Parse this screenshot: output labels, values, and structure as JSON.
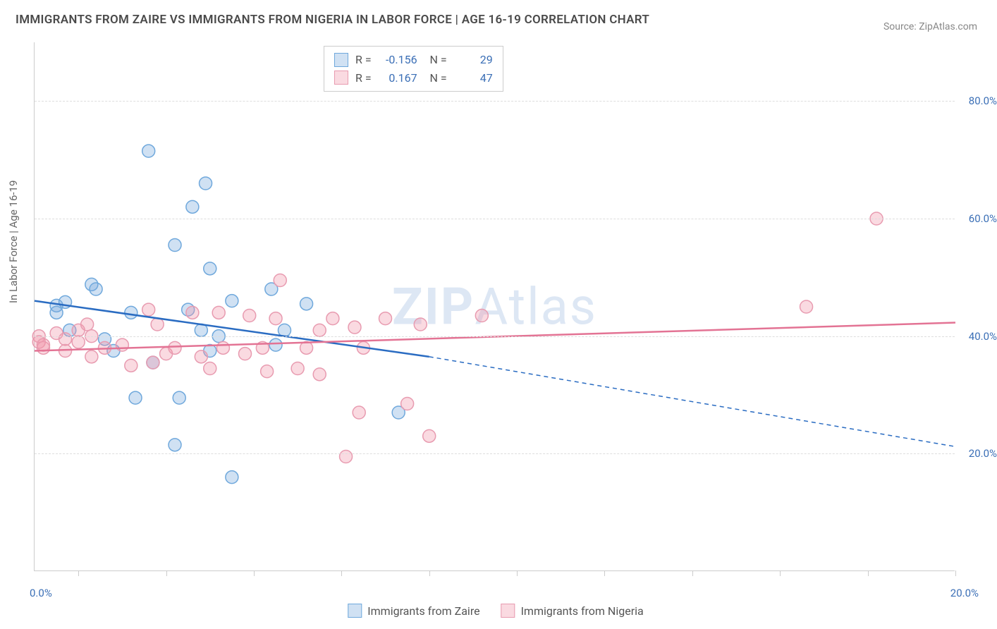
{
  "title": "IMMIGRANTS FROM ZAIRE VS IMMIGRANTS FROM NIGERIA IN LABOR FORCE | AGE 16-19 CORRELATION CHART",
  "source": "Source: ZipAtlas.com",
  "watermark_bold": "ZIP",
  "watermark_rest": "Atlas",
  "ylabel": "In Labor Force | Age 16-19",
  "chart": {
    "type": "scatter",
    "background_color": "#ffffff",
    "grid_color": "#dddddd",
    "axis_color": "#cccccc",
    "text_color": "#666666",
    "value_color": "#3b6fb6",
    "xlim": [
      -1,
      20
    ],
    "ylim": [
      0,
      90
    ],
    "xtick_positions": [
      0,
      2,
      4,
      6,
      8,
      10,
      12,
      14,
      16,
      18,
      20
    ],
    "xtick_labels": {
      "0": "0.0%",
      "20": "20.0%"
    },
    "ytick_positions": [
      20,
      40,
      60,
      80
    ],
    "ytick_labels": [
      "20.0%",
      "40.0%",
      "60.0%",
      "80.0%"
    ],
    "marker_radius": 9,
    "marker_stroke_width": 1.5,
    "trend_line_width": 2.5,
    "series": [
      {
        "name": "Immigrants from Zaire",
        "fill_color": "rgba(120,170,220,0.35)",
        "stroke_color": "#6fa8dc",
        "line_color": "#2a6cc2",
        "R": "-0.156",
        "N": "29",
        "points": [
          [
            -0.5,
            45.2
          ],
          [
            -0.5,
            44.0
          ],
          [
            -0.3,
            45.8
          ],
          [
            -0.2,
            41.0
          ],
          [
            0.3,
            48.8
          ],
          [
            0.4,
            48.0
          ],
          [
            0.6,
            39.5
          ],
          [
            0.8,
            37.5
          ],
          [
            1.2,
            44.0
          ],
          [
            1.3,
            29.5
          ],
          [
            1.6,
            71.5
          ],
          [
            1.7,
            35.5
          ],
          [
            2.2,
            21.5
          ],
          [
            2.2,
            55.5
          ],
          [
            2.3,
            29.5
          ],
          [
            2.5,
            44.5
          ],
          [
            2.6,
            62.0
          ],
          [
            2.8,
            41.0
          ],
          [
            2.9,
            66.0
          ],
          [
            3.0,
            51.5
          ],
          [
            3.0,
            37.5
          ],
          [
            3.2,
            40.0
          ],
          [
            3.5,
            16.0
          ],
          [
            3.5,
            46.0
          ],
          [
            4.4,
            48.0
          ],
          [
            4.5,
            38.5
          ],
          [
            4.7,
            41.0
          ],
          [
            5.2,
            45.5
          ],
          [
            7.3,
            27.0
          ]
        ],
        "trend": {
          "x1": -1,
          "y1": 46.0,
          "x2_solid": 8,
          "y2_solid": 36.5,
          "x2": 20,
          "y2": 21.2
        }
      },
      {
        "name": "Immigrants from Nigeria",
        "fill_color": "rgba(240,150,170,0.35)",
        "stroke_color": "#e89bb0",
        "line_color": "#e37394",
        "R": "0.167",
        "N": "47",
        "points": [
          [
            -0.9,
            40.0
          ],
          [
            -0.9,
            39.0
          ],
          [
            -0.8,
            38.0
          ],
          [
            -0.8,
            38.5
          ],
          [
            -0.5,
            40.5
          ],
          [
            -0.3,
            39.5
          ],
          [
            -0.3,
            37.5
          ],
          [
            0.0,
            41.0
          ],
          [
            0.0,
            39.0
          ],
          [
            0.2,
            42.0
          ],
          [
            0.3,
            36.5
          ],
          [
            0.3,
            40.0
          ],
          [
            0.6,
            38.0
          ],
          [
            1.0,
            38.5
          ],
          [
            1.2,
            35.0
          ],
          [
            1.6,
            44.5
          ],
          [
            1.7,
            35.5
          ],
          [
            1.8,
            42.0
          ],
          [
            2.0,
            37.0
          ],
          [
            2.2,
            38.0
          ],
          [
            2.6,
            44.0
          ],
          [
            2.8,
            36.5
          ],
          [
            3.0,
            34.5
          ],
          [
            3.2,
            44.0
          ],
          [
            3.3,
            38.0
          ],
          [
            3.8,
            37.0
          ],
          [
            3.9,
            43.5
          ],
          [
            4.2,
            38.0
          ],
          [
            4.3,
            34.0
          ],
          [
            4.5,
            43.0
          ],
          [
            4.6,
            49.5
          ],
          [
            5.0,
            34.5
          ],
          [
            5.2,
            38.0
          ],
          [
            5.5,
            41.0
          ],
          [
            5.5,
            33.5
          ],
          [
            5.8,
            43.0
          ],
          [
            6.1,
            19.5
          ],
          [
            6.3,
            41.5
          ],
          [
            6.4,
            27.0
          ],
          [
            6.5,
            38.0
          ],
          [
            7.0,
            43.0
          ],
          [
            7.5,
            28.5
          ],
          [
            7.8,
            42.0
          ],
          [
            8.0,
            23.0
          ],
          [
            9.2,
            43.5
          ],
          [
            16.6,
            45.0
          ],
          [
            18.2,
            60.0
          ]
        ],
        "trend": {
          "x1": -1,
          "y1": 37.5,
          "x2_solid": 20,
          "y2_solid": 42.3,
          "x2": 20,
          "y2": 42.3
        }
      }
    ]
  },
  "legend_bottom": [
    "Immigrants from Zaire",
    "Immigrants from Nigeria"
  ]
}
